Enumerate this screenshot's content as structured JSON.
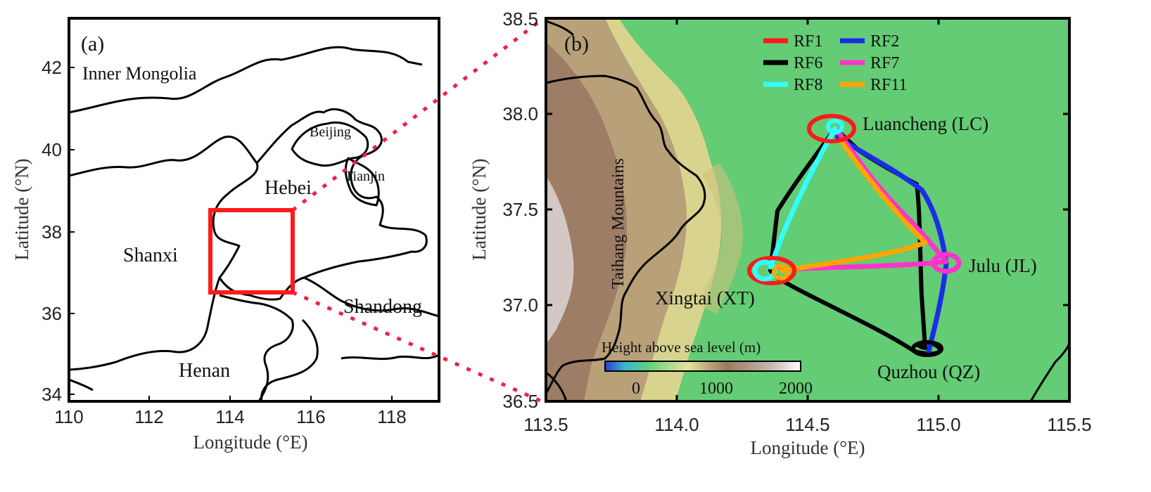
{
  "panel_a": {
    "label": "(a)",
    "x_axis_label": "Longitude (°E)",
    "y_axis_label": "Latitude (°N)",
    "x_ticks": [
      "110",
      "112",
      "114",
      "116",
      "118"
    ],
    "y_ticks": [
      "34",
      "36",
      "38",
      "40",
      "42"
    ],
    "provinces": {
      "inner_mongolia": "Inner Mongolia",
      "beijing": "Beijing",
      "tianjin": "Tianjin",
      "hebei": "Hebei",
      "shanxi": "Shanxi",
      "shandong": "Shandong",
      "henan": "Henan"
    },
    "study_box_color": "#ff1a1a"
  },
  "panel_b": {
    "label": "(b)",
    "x_axis_label": "Longitude (°E)",
    "y_axis_label": "Latitude (°N)",
    "x_ticks": [
      "113.5",
      "114.0",
      "114.5",
      "115.0",
      "115.5"
    ],
    "y_ticks": [
      "36.5",
      "37.0",
      "37.5",
      "38.0",
      "38.5"
    ],
    "mountains_label": "Taihang Mountains",
    "sites": {
      "luancheng": "Luancheng (LC)",
      "julu": "Julu (JL)",
      "xingtai": "Xingtai (XT)",
      "quzhou": "Quzhou (QZ)"
    },
    "colorbar": {
      "title": "Height above sea level (m)",
      "ticks": [
        "0",
        "1000",
        "2000"
      ]
    },
    "legend": [
      {
        "name": "RF1",
        "color": "#ff1a1a"
      },
      {
        "name": "RF2",
        "color": "#1a2ee6"
      },
      {
        "name": "RF6",
        "color": "#000000"
      },
      {
        "name": "RF7",
        "color": "#ff33cc"
      },
      {
        "name": "RF8",
        "color": "#33ffff"
      },
      {
        "name": "RF11",
        "color": "#ffa500"
      }
    ]
  }
}
